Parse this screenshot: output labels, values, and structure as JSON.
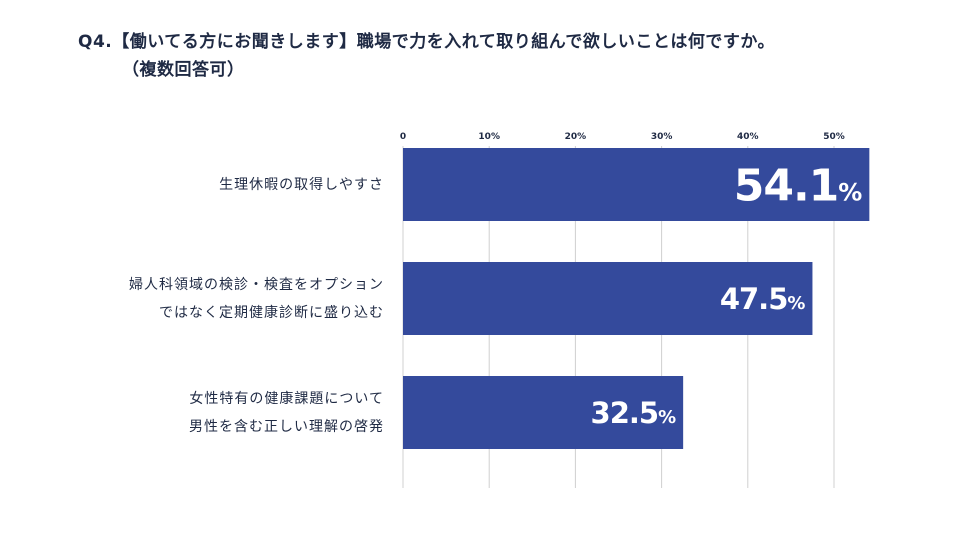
{
  "title": {
    "line1": "Q4.【働いてる方にお聞きします】職場で力を入れて取り組んで欲しいことは何ですか。",
    "line2": "（複数回答可）"
  },
  "chart_data": {
    "type": "bar",
    "orientation": "horizontal",
    "categories": [
      [
        "生理休暇の取得しやすさ"
      ],
      [
        "婦人科領域の検診・検査をオプション",
        "ではなく定期健康診断に盛り込む"
      ],
      [
        "女性特有の健康課題について",
        "男性を含む正しい理解の啓発"
      ]
    ],
    "values": [
      54.1,
      47.5,
      32.5
    ],
    "value_labels": [
      "54.1",
      "47.5",
      "32.5"
    ],
    "unit": "%",
    "xlim": [
      0,
      55
    ],
    "xticks": [
      0,
      10,
      20,
      30,
      40,
      50
    ],
    "xtick_labels": [
      "0",
      "10%",
      "20%",
      "30%",
      "40%",
      "50%"
    ],
    "grid": true,
    "colors": {
      "bar": "#344a9c",
      "grid": "#d0d0d0",
      "text": "#1f2a44",
      "value_text": "#ffffff"
    }
  }
}
